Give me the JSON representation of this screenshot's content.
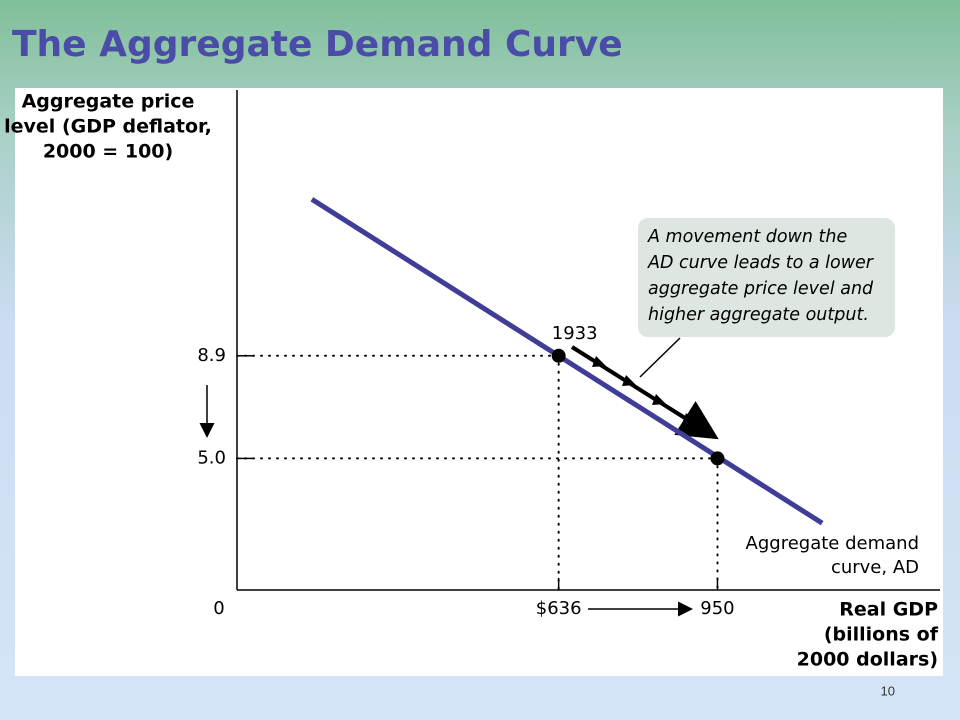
{
  "title": "The Aggregate Demand Curve",
  "slide_number": "10",
  "chart_data": {
    "type": "line",
    "y_label": [
      "Aggregate price",
      "level (GDP deflator,",
      "2000 = 100)"
    ],
    "x_label": [
      "Real GDP",
      "(billions of",
      "2000 dollars)"
    ],
    "x": [
      148,
      1157
    ],
    "values": [
      14.85,
      2.54
    ],
    "color": "#3f3d97",
    "points": {
      "x": [
        636,
        950
      ],
      "values": [
        8.9,
        5.0
      ],
      "color": "#000000"
    },
    "point_label": "1933",
    "curve_label": [
      "Aggregate demand",
      "curve, AD"
    ],
    "callout": [
      "A movement down the",
      "AD curve leads to a lower",
      "aggregate price level and",
      "higher aggregate output."
    ],
    "xlim": [
      0,
      1390
    ],
    "ylim": [
      0,
      19
    ],
    "xticks": [
      0,
      {
        "value": 636,
        "label": "$636"
      },
      950
    ],
    "yticks": [
      8.9,
      {
        "value": 5,
        "label": "5.0"
      }
    ],
    "grid": false
  }
}
